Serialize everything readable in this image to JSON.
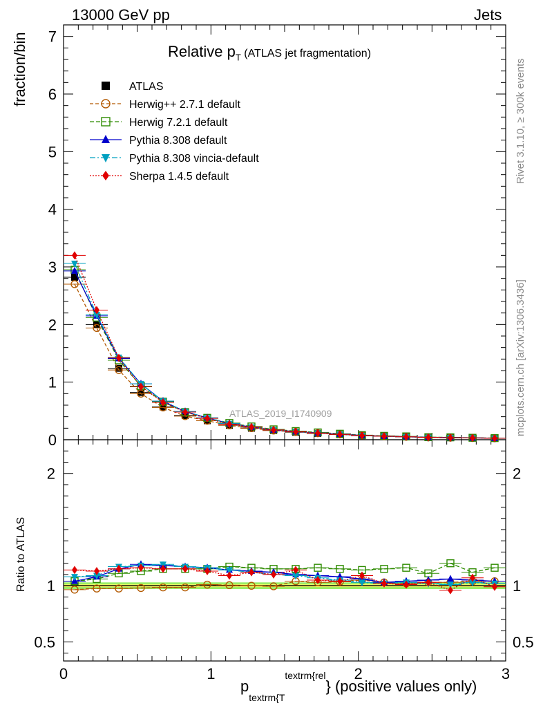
{
  "header": {
    "left": "13000 GeV pp",
    "right": "Jets"
  },
  "side_labels": {
    "rivet": "Rivet 3.1.10, ≥ 300k events",
    "mcplots": "mcplots.cern.ch [arXiv:1306.3436]"
  },
  "watermark": "ATLAS_2019_I1740909",
  "chart_data": [
    {
      "type": "line",
      "title": {
        "main": "Relative p",
        "sub": "T",
        "rest": " (ATLAS jet fragmentation)"
      },
      "ylabel": "fraction/bin",
      "xlim": [
        0,
        3.0
      ],
      "ylim": [
        0,
        7.2
      ],
      "yticks": [
        0,
        1,
        2,
        3,
        4,
        5,
        6,
        7
      ],
      "x": [
        0.075,
        0.225,
        0.375,
        0.525,
        0.675,
        0.825,
        0.975,
        1.125,
        1.275,
        1.425,
        1.575,
        1.725,
        1.875,
        2.025,
        2.175,
        2.325,
        2.475,
        2.625,
        2.775,
        2.925
      ],
      "series": [
        {
          "name": "ATLAS",
          "color": "#000000",
          "marker": "square-filled",
          "values": [
            2.82,
            2.0,
            1.24,
            0.82,
            0.57,
            0.42,
            0.33,
            0.25,
            0.2,
            0.16,
            0.13,
            0.11,
            0.09,
            0.07,
            0.06,
            0.05,
            0.04,
            0.035,
            0.03,
            0.025
          ]
        },
        {
          "name": "Herwig++ 2.7.1 default",
          "color": "#b35900",
          "marker": "circle-open",
          "dash": "5,3",
          "values": [
            2.7,
            1.94,
            1.21,
            0.8,
            0.56,
            0.41,
            0.33,
            0.25,
            0.2,
            0.16,
            0.135,
            0.113,
            0.093,
            0.074,
            0.062,
            0.051,
            0.041,
            0.036,
            0.031,
            0.026
          ]
        },
        {
          "name": "Herwig 7.2.1 default",
          "color": "#2e8b00",
          "marker": "square-open",
          "dash": "6,3",
          "values": [
            2.95,
            2.12,
            1.38,
            0.93,
            0.66,
            0.48,
            0.38,
            0.29,
            0.23,
            0.18,
            0.15,
            0.127,
            0.104,
            0.08,
            0.067,
            0.058,
            0.044,
            0.042,
            0.034,
            0.029
          ]
        },
        {
          "name": "Pythia 8.308 default",
          "color": "#0000cc",
          "marker": "triangle-up-filled",
          "dash": "",
          "values": [
            2.93,
            2.15,
            1.41,
            0.97,
            0.67,
            0.49,
            0.38,
            0.28,
            0.22,
            0.17,
            0.14,
            0.117,
            0.097,
            0.074,
            0.061,
            0.052,
            0.042,
            0.037,
            0.032,
            0.026
          ]
        },
        {
          "name": "Pythia 8.308 vincia-default",
          "color": "#00a0c0",
          "marker": "triangle-down-filled",
          "dash": "8,3,2,3",
          "values": [
            3.06,
            2.17,
            1.43,
            0.97,
            0.67,
            0.49,
            0.38,
            0.28,
            0.22,
            0.17,
            0.14,
            0.115,
            0.095,
            0.072,
            0.061,
            0.051,
            0.041,
            0.036,
            0.031,
            0.026
          ]
        },
        {
          "name": "Sherpa 1.4.5 default",
          "color": "#e00000",
          "marker": "diamond-filled",
          "dash": "2,2",
          "values": [
            3.2,
            2.25,
            1.42,
            0.92,
            0.65,
            0.48,
            0.37,
            0.27,
            0.22,
            0.17,
            0.14,
            0.115,
            0.093,
            0.073,
            0.061,
            0.051,
            0.041,
            0.034,
            0.032,
            0.025
          ]
        }
      ]
    },
    {
      "type": "line",
      "ylabel": "Ratio to ATLAS",
      "xlabel": {
        "p": "p",
        "sub": "textrm{T",
        "sup": "textrm{rel",
        "rest": "} (positive values only)"
      },
      "xlim": [
        0,
        3.0
      ],
      "ylim": [
        0.33,
        2.3
      ],
      "yticks": [
        0.5,
        1,
        2
      ],
      "xticks": [
        0,
        1,
        2,
        3
      ],
      "band_half_widths": {
        "inner": 0.012,
        "outer": 0.03
      },
      "band_colors": {
        "inner": "#ffff66",
        "outer": "#99ee66"
      },
      "series": [
        {
          "name": "Herwig++ 2.7.1 default",
          "values": [
            0.965,
            0.975,
            0.975,
            0.98,
            0.985,
            0.985,
            1.01,
            1.005,
            1.0,
            0.995,
            1.04,
            1.03,
            1.035,
            1.05,
            1.03,
            1.02,
            1.03,
            1.03,
            1.04,
            1.04
          ]
        },
        {
          "name": "Herwig 7.2.1 default",
          "values": [
            1.04,
            1.06,
            1.11,
            1.13,
            1.15,
            1.15,
            1.15,
            1.17,
            1.16,
            1.15,
            1.15,
            1.16,
            1.15,
            1.14,
            1.15,
            1.16,
            1.11,
            1.2,
            1.12,
            1.16
          ]
        },
        {
          "name": "Pythia 8.308 default",
          "values": [
            1.04,
            1.08,
            1.15,
            1.19,
            1.18,
            1.17,
            1.16,
            1.14,
            1.13,
            1.12,
            1.1,
            1.09,
            1.08,
            1.06,
            1.03,
            1.04,
            1.05,
            1.06,
            1.05,
            1.04
          ]
        },
        {
          "name": "Pythia 8.308 vincia-default",
          "values": [
            1.08,
            1.09,
            1.17,
            1.18,
            1.19,
            1.17,
            1.16,
            1.14,
            1.12,
            1.1,
            1.09,
            1.07,
            1.05,
            1.03,
            1.02,
            1.03,
            1.02,
            1.01,
            1.03,
            1.02
          ]
        },
        {
          "name": "Sherpa 1.4.5 default",
          "values": [
            1.14,
            1.13,
            1.15,
            1.16,
            1.15,
            1.15,
            1.13,
            1.09,
            1.12,
            1.1,
            1.14,
            1.05,
            1.04,
            1.09,
            1.02,
            1.01,
            1.03,
            0.96,
            1.07,
            0.99
          ]
        }
      ]
    }
  ]
}
